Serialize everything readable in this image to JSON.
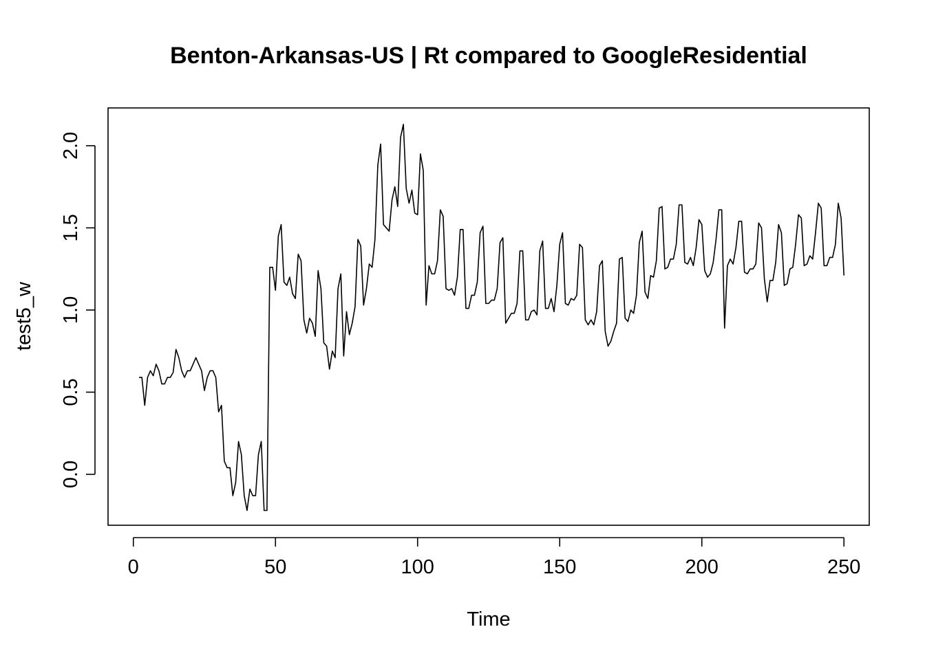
{
  "chart_data": {
    "type": "line",
    "title": "Benton-Arkansas-US | Rt compared to GoogleResidential",
    "xlabel": "Time",
    "ylabel": "test5_w",
    "xlim": [
      -8.9,
      258.9
    ],
    "ylim": [
      -0.31,
      2.23
    ],
    "x_ticks": [
      0,
      50,
      100,
      150,
      200,
      250
    ],
    "x_tick_labels": [
      "0",
      "50",
      "100",
      "150",
      "200",
      "250"
    ],
    "y_ticks": [
      0.0,
      0.5,
      1.0,
      1.5,
      2.0
    ],
    "y_tick_labels": [
      "0.0",
      "0.5",
      "1.0",
      "1.5",
      "2.0"
    ],
    "grid": false,
    "legend": "none",
    "line_color": "#000000",
    "series": [
      {
        "x_start": 2,
        "x_step": 1,
        "values": [
          0.59,
          0.59,
          0.42,
          0.59,
          0.63,
          0.6,
          0.67,
          0.63,
          0.55,
          0.55,
          0.59,
          0.59,
          0.62,
          0.76,
          0.71,
          0.63,
          0.59,
          0.63,
          0.63,
          0.67,
          0.71,
          0.67,
          0.63,
          0.51,
          0.59,
          0.63,
          0.63,
          0.59,
          0.38,
          0.42,
          0.08,
          0.04,
          0.04,
          -0.13,
          -0.05,
          0.2,
          0.12,
          -0.13,
          -0.22,
          -0.09,
          -0.13,
          -0.13,
          0.12,
          0.2,
          -0.22,
          -0.22,
          1.26,
          1.26,
          1.12,
          1.45,
          1.52,
          1.17,
          1.15,
          1.2,
          1.1,
          1.07,
          1.34,
          1.3,
          0.94,
          0.86,
          0.95,
          0.92,
          0.84,
          1.24,
          1.13,
          0.8,
          0.78,
          0.64,
          0.75,
          0.71,
          1.13,
          1.22,
          0.72,
          0.99,
          0.85,
          0.92,
          1.02,
          1.43,
          1.39,
          1.03,
          1.13,
          1.28,
          1.26,
          1.43,
          1.88,
          2.01,
          1.52,
          1.5,
          1.48,
          1.67,
          1.75,
          1.63,
          2.05,
          2.13,
          1.74,
          1.65,
          1.73,
          1.59,
          1.58,
          1.95,
          1.85,
          1.03,
          1.27,
          1.22,
          1.22,
          1.3,
          1.61,
          1.57,
          1.13,
          1.12,
          1.13,
          1.09,
          1.2,
          1.49,
          1.49,
          1.01,
          1.01,
          1.09,
          1.09,
          1.17,
          1.47,
          1.51,
          1.04,
          1.04,
          1.06,
          1.06,
          1.13,
          1.41,
          1.44,
          0.92,
          0.95,
          0.98,
          0.98,
          1.04,
          1.36,
          1.36,
          0.94,
          0.94,
          0.99,
          1.0,
          0.97,
          1.36,
          1.42,
          1.01,
          1.01,
          1.07,
          0.99,
          1.15,
          1.4,
          1.47,
          1.04,
          1.03,
          1.07,
          1.06,
          1.09,
          1.4,
          1.38,
          0.94,
          0.91,
          0.94,
          0.91,
          0.99,
          1.27,
          1.3,
          0.87,
          0.78,
          0.81,
          0.87,
          0.92,
          1.31,
          1.32,
          0.95,
          0.93,
          1.0,
          0.98,
          1.09,
          1.41,
          1.48,
          1.11,
          1.07,
          1.21,
          1.2,
          1.3,
          1.62,
          1.63,
          1.25,
          1.26,
          1.31,
          1.31,
          1.4,
          1.64,
          1.64,
          1.29,
          1.28,
          1.32,
          1.27,
          1.38,
          1.55,
          1.52,
          1.24,
          1.2,
          1.22,
          1.29,
          1.43,
          1.61,
          1.61,
          0.89,
          1.27,
          1.31,
          1.28,
          1.38,
          1.54,
          1.54,
          1.23,
          1.22,
          1.25,
          1.25,
          1.28,
          1.53,
          1.5,
          1.19,
          1.05,
          1.18,
          1.18,
          1.29,
          1.52,
          1.47,
          1.15,
          1.16,
          1.25,
          1.26,
          1.4,
          1.58,
          1.56,
          1.27,
          1.28,
          1.33,
          1.31,
          1.47,
          1.65,
          1.62,
          1.27,
          1.27,
          1.32,
          1.32,
          1.4,
          1.65,
          1.56,
          1.21
        ]
      }
    ]
  }
}
